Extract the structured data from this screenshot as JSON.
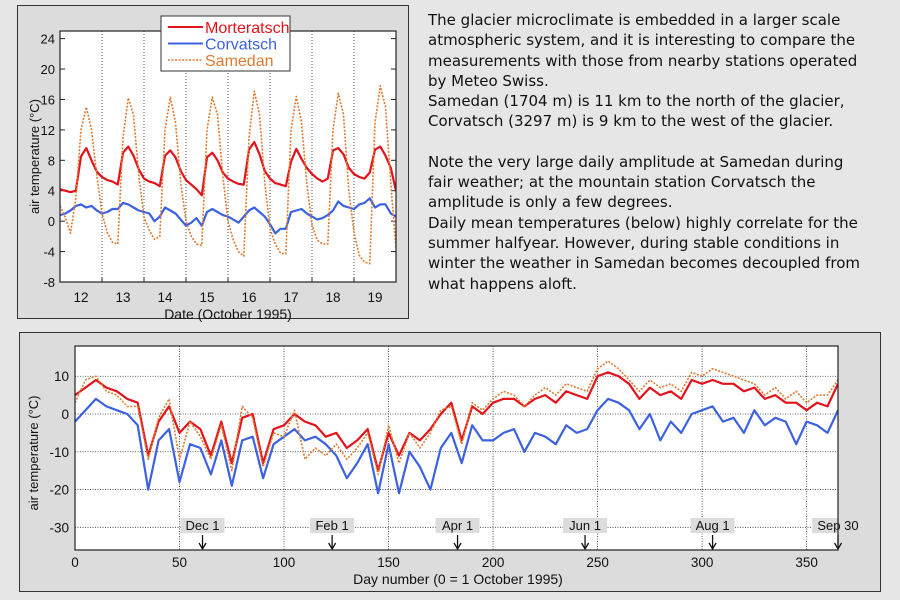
{
  "description": {
    "lines": [
      "The glacier microclimate is embedded in a larger scale",
      "atmospheric system, and it is interesting to compare the",
      "measurements with those from nearby stations operated",
      "by Meteo Swiss.",
      "Samedan (1704 m) is 11 km to the north of the glacier,",
      "Corvatsch (3297 m) is 9 km to the west of the glacier.",
      "",
      "Note the very large daily amplitude at Samedan during",
      "fair weather; at the mountain station Corvatsch the",
      "amplitude is only a few degrees.",
      "Daily mean temperatures (below) highly correlate for the",
      "summer halfyear. However, during stable conditions in",
      "winter the weather in Samedan becomes decoupled from",
      "what happens aloft."
    ]
  },
  "colors": {
    "morteratsch": "#e3131c",
    "corvatsch": "#3c62e0",
    "samedan": "#e07a30"
  },
  "chart_data": [
    {
      "type": "line",
      "title": "",
      "xlabel": "Date (October 1995)",
      "ylabel": "air temperature (°C)",
      "xlim": [
        12,
        20
      ],
      "ylim": [
        -8,
        25
      ],
      "yticks": [
        -8,
        -4,
        0,
        4,
        8,
        12,
        16,
        20,
        24
      ],
      "xtick_labels": [
        "12",
        "13",
        "14",
        "15",
        "16",
        "17",
        "18",
        "19"
      ],
      "grid": "vertical dotted at day boundaries",
      "legend": {
        "position": "top-center",
        "entries": [
          "Morteratsch",
          "Corvatsch",
          "Samedan"
        ]
      },
      "x_step_hours": 3,
      "series": [
        {
          "name": "Morteratsch",
          "style": "solid",
          "values": [
            4.2,
            4.0,
            3.8,
            4.0,
            8.5,
            9.6,
            8.0,
            6.5,
            5.8,
            5.4,
            5.2,
            4.8,
            9.0,
            9.8,
            8.6,
            6.8,
            5.6,
            5.2,
            5.0,
            4.6,
            8.6,
            9.3,
            8.4,
            6.6,
            5.4,
            4.8,
            4.2,
            3.4,
            8.4,
            9.0,
            8.0,
            6.4,
            5.6,
            5.2,
            4.9,
            4.8,
            9.4,
            10.4,
            8.8,
            6.6,
            5.6,
            5.0,
            4.8,
            4.6,
            7.8,
            9.5,
            8.2,
            7.0,
            6.2,
            5.6,
            5.2,
            5.6,
            9.3,
            9.6,
            8.8,
            7.0,
            6.2,
            5.8,
            5.6,
            6.4,
            9.4,
            9.8,
            8.6,
            7.0,
            4.0
          ]
        },
        {
          "name": "Corvatsch",
          "style": "solid",
          "values": [
            0.8,
            1.0,
            1.4,
            2.0,
            2.2,
            1.8,
            2.0,
            1.4,
            1.0,
            1.2,
            1.6,
            1.6,
            2.4,
            2.2,
            1.8,
            1.4,
            1.2,
            1.0,
            0.0,
            0.6,
            1.8,
            1.4,
            1.0,
            0.2,
            -0.6,
            -0.2,
            0.4,
            -0.6,
            1.2,
            1.6,
            1.2,
            0.8,
            0.6,
            0.2,
            -0.2,
            0.6,
            1.4,
            1.8,
            1.2,
            0.6,
            -0.4,
            -1.6,
            -1.0,
            -1.0,
            1.2,
            1.4,
            1.6,
            1.0,
            0.6,
            0.2,
            0.4,
            0.8,
            1.4,
            2.6,
            2.0,
            1.8,
            1.6,
            2.2,
            2.4,
            3.0,
            1.8,
            2.2,
            2.2,
            1.0,
            0.6
          ]
        },
        {
          "name": "Samedan",
          "style": "dotted",
          "values": [
            2.0,
            0.5,
            -1.6,
            3.0,
            12.0,
            15.0,
            12.0,
            6.0,
            1.0,
            -1.5,
            -2.8,
            -3.0,
            11.0,
            16.2,
            14.0,
            6.0,
            0.5,
            -1.2,
            -2.4,
            -2.0,
            12.0,
            16.3,
            13.0,
            5.0,
            0.0,
            -2.0,
            -3.0,
            -3.2,
            12.0,
            16.3,
            14.0,
            6.0,
            0.0,
            -2.5,
            -4.0,
            -4.6,
            11.0,
            17.1,
            14.0,
            5.0,
            -1.0,
            -3.0,
            -4.2,
            -4.3,
            12.0,
            16.4,
            13.0,
            5.0,
            -0.5,
            -2.5,
            -3.0,
            -3.0,
            12.0,
            16.8,
            14.0,
            4.0,
            -1.5,
            -4.5,
            -5.4,
            -5.6,
            13.0,
            17.8,
            15.0,
            5.0,
            -3.6
          ]
        }
      ]
    },
    {
      "type": "line",
      "title": "",
      "xlabel": "Day number (0 = 1 October 1995)",
      "ylabel": "air temperature (°C)",
      "xlim": [
        0,
        365
      ],
      "ylim": [
        -36,
        18
      ],
      "xticks": [
        0,
        50,
        100,
        150,
        200,
        250,
        300,
        350
      ],
      "yticks": [
        -30,
        -20,
        -10,
        0,
        10
      ],
      "grid": "dotted both",
      "x_step_days": 5,
      "annotations": [
        {
          "label": "Dec 1",
          "day": 61
        },
        {
          "label": "Feb 1",
          "day": 123
        },
        {
          "label": "Apr 1",
          "day": 183
        },
        {
          "label": "Jun 1",
          "day": 244
        },
        {
          "label": "Aug 1",
          "day": 305
        },
        {
          "label": "Sep 30",
          "day": 365
        }
      ],
      "series": [
        {
          "name": "Morteratsch",
          "style": "solid",
          "values": [
            5,
            7,
            9,
            7,
            6,
            4,
            3,
            -11,
            -2,
            2,
            -5,
            -2,
            -4,
            -11,
            -2,
            -13,
            -1,
            0,
            -13,
            -4,
            -3,
            0,
            -2,
            -3,
            -6,
            -5,
            -9,
            -7,
            -4,
            -15,
            -5,
            -11,
            -5,
            -7,
            -4,
            0,
            3,
            -7,
            2,
            0,
            3,
            4,
            4,
            2,
            4,
            5,
            3,
            6,
            5,
            4,
            10,
            11,
            10,
            8,
            4,
            7,
            5,
            6,
            4,
            9,
            8,
            9,
            8,
            8,
            6,
            7,
            4,
            5,
            3,
            3,
            1,
            3,
            2,
            8
          ]
        },
        {
          "name": "Corvatsch",
          "style": "solid",
          "values": [
            -2,
            1,
            4,
            2,
            1,
            0,
            -3,
            -20,
            -7,
            -4,
            -18,
            -8,
            -9,
            -16,
            -7,
            -19,
            -7,
            -6,
            -17,
            -8,
            -6,
            -4,
            -7,
            -6,
            -8,
            -11,
            -17,
            -13,
            -8,
            -21,
            -8,
            -21,
            -10,
            -14,
            -20,
            -9,
            -5,
            -13,
            -3,
            -7,
            -7,
            -5,
            -4,
            -10,
            -5,
            -6,
            -8,
            -3,
            -5,
            -4,
            1,
            4,
            3,
            1,
            -4,
            0,
            -7,
            -2,
            -5,
            0,
            1,
            2,
            -2,
            -1,
            -5,
            1,
            -3,
            -1,
            -2,
            -8,
            -2,
            -3,
            -5,
            1
          ]
        },
        {
          "name": "Samedan",
          "style": "dotted",
          "values": [
            3,
            9,
            10,
            6,
            5,
            2,
            2,
            -12,
            -1,
            4,
            -12,
            -2,
            -6,
            -12,
            -3,
            -15,
            2,
            -1,
            -14,
            -5,
            -6,
            1,
            -12,
            -9,
            -11,
            -8,
            -12,
            -9,
            -5,
            -16,
            -3,
            -13,
            -5,
            -9,
            -5,
            1,
            2,
            -8,
            3,
            1,
            4,
            6,
            5,
            2,
            5,
            7,
            5,
            8,
            7,
            6,
            12,
            14,
            12,
            9,
            6,
            9,
            7,
            8,
            6,
            11,
            10,
            12,
            11,
            10,
            9,
            8,
            5,
            7,
            4,
            6,
            3,
            5,
            5,
            9
          ]
        }
      ]
    }
  ]
}
